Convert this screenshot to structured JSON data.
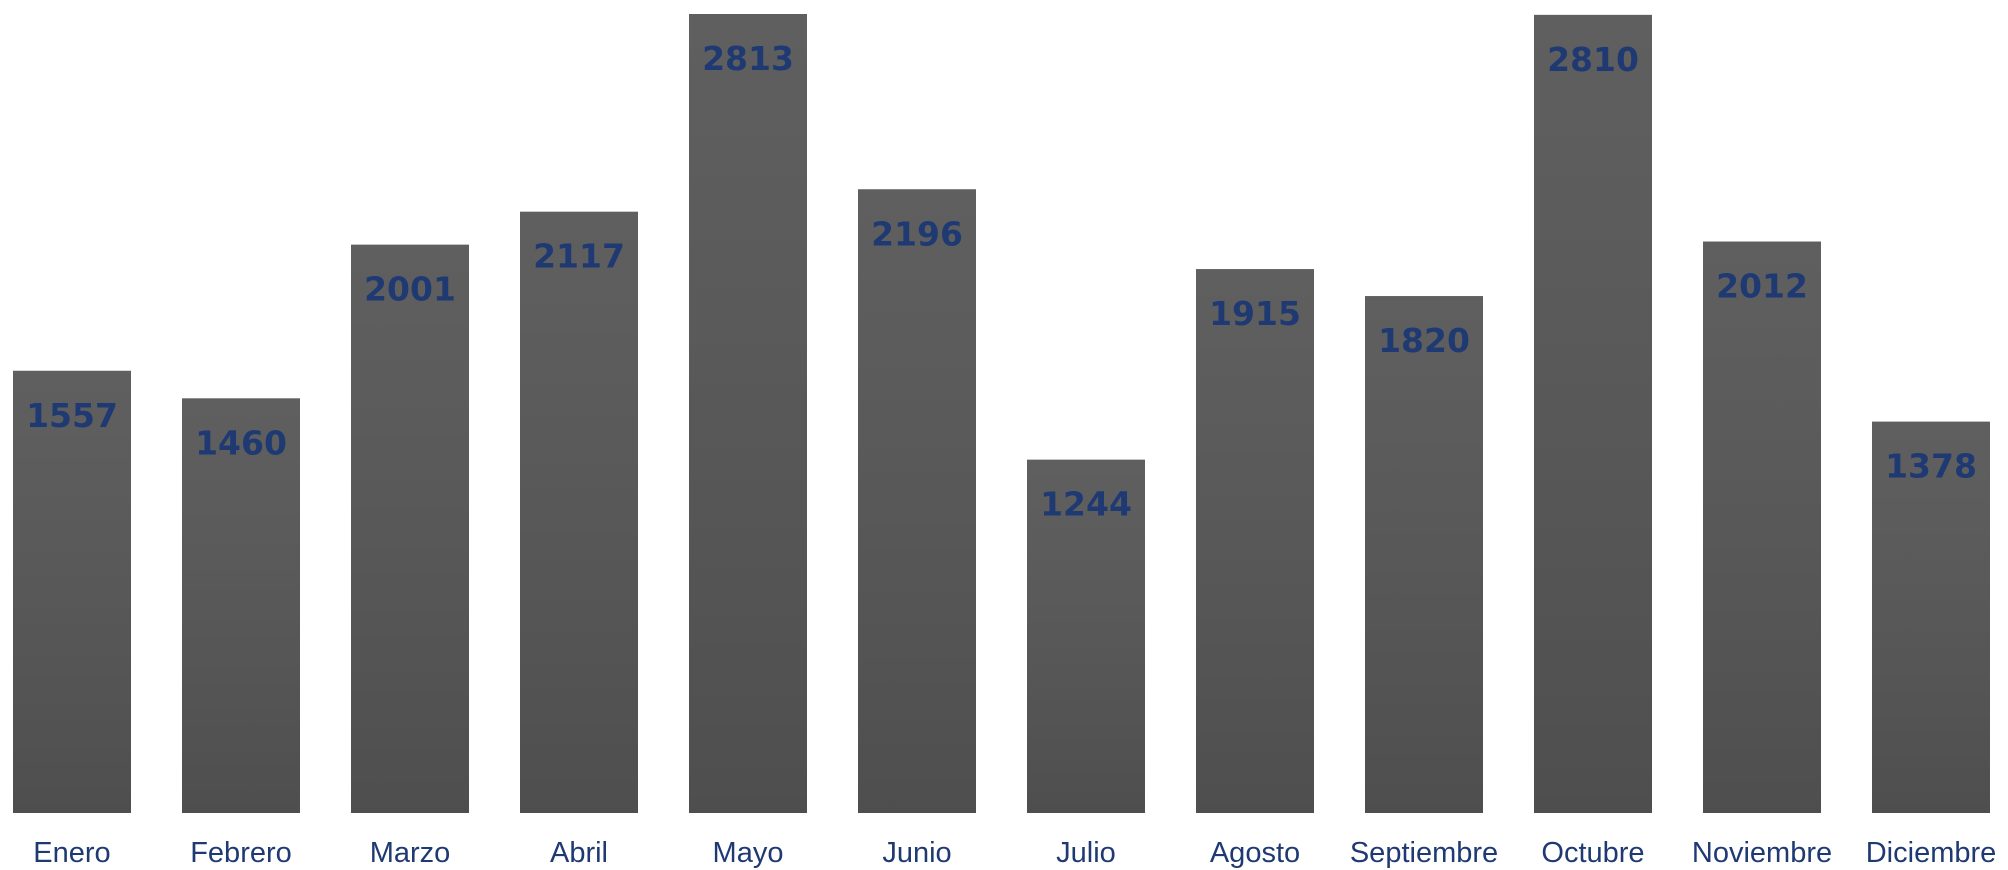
{
  "chart_data": {
    "type": "bar",
    "categories": [
      "Enero",
      "Febrero",
      "Marzo",
      "Abril",
      "Mayo",
      "Junio",
      "Julio",
      "Agosto",
      "Septiembre",
      "Octubre",
      "Noviembre",
      "Diciembre"
    ],
    "values": [
      1557,
      1460,
      2001,
      2117,
      2813,
      2196,
      1244,
      1915,
      1820,
      2810,
      2012,
      1378
    ],
    "color": "#555555",
    "label_color": "#1f3a73"
  }
}
